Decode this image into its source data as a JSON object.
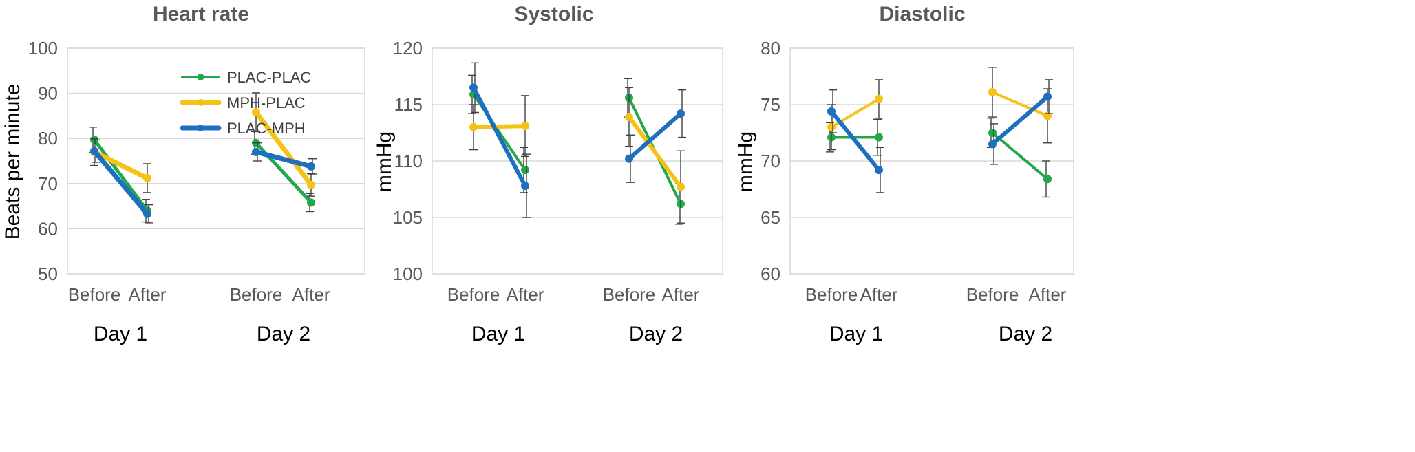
{
  "legend": [
    {
      "name": "PLAC-PLAC",
      "color": "#21a84a"
    },
    {
      "name": "MPH-PLAC",
      "color": "#f5c217"
    },
    {
      "name": "PLAC-MPH",
      "color": "#1f6fbf"
    }
  ],
  "chart_data": [
    {
      "type": "line",
      "title": "Heart rate",
      "ylabel": "Beats per minute",
      "ylim": [
        50,
        100
      ],
      "yticks": [
        50,
        60,
        70,
        80,
        90,
        100
      ],
      "grid": true,
      "legend_position": "top-left",
      "groups": [
        {
          "label": "Day 1",
          "categories": [
            "Before",
            "After"
          ]
        },
        {
          "label": "Day 2",
          "categories": [
            "Before",
            "After"
          ]
        }
      ],
      "series": [
        {
          "name": "PLAC-PLAC",
          "color": "#21a84a",
          "values": [
            [
              79.7,
              64.0
            ],
            [
              79.0,
              65.8
            ]
          ],
          "errors": [
            [
              2.8,
              2.5
            ],
            [
              2.5,
              2.0
            ]
          ]
        },
        {
          "name": "MPH-PLAC",
          "color": "#f5c217",
          "values": [
            [
              77.0,
              71.2
            ],
            [
              85.8,
              69.7
            ]
          ],
          "errors": [
            [
              3.0,
              3.2
            ],
            [
              4.3,
              2.5
            ]
          ]
        },
        {
          "name": "PLAC-MPH",
          "color": "#1f6fbf",
          "values": [
            [
              77.2,
              63.3
            ],
            [
              77.0,
              73.8
            ]
          ],
          "errors": [
            [
              2.5,
              2.0
            ],
            [
              2.0,
              1.7
            ]
          ]
        }
      ]
    },
    {
      "type": "line",
      "title": "Systolic",
      "ylabel": "mmHg",
      "ylim": [
        100,
        120
      ],
      "yticks": [
        100,
        105,
        110,
        115,
        120
      ],
      "grid": true,
      "groups": [
        {
          "label": "Day 1",
          "categories": [
            "Before",
            "After"
          ]
        },
        {
          "label": "Day 2",
          "categories": [
            "Before",
            "After"
          ]
        }
      ],
      "series": [
        {
          "name": "PLAC-PLAC",
          "color": "#21a84a",
          "values": [
            [
              115.9,
              109.2
            ],
            [
              115.6,
              106.2
            ]
          ],
          "errors": [
            [
              1.7,
              2.0
            ],
            [
              1.7,
              1.8
            ]
          ]
        },
        {
          "name": "MPH-PLAC",
          "color": "#f5c217",
          "values": [
            [
              113.0,
              113.1
            ],
            [
              113.9,
              107.7
            ]
          ],
          "errors": [
            [
              2.0,
              2.7
            ],
            [
              2.6,
              3.2
            ]
          ]
        },
        {
          "name": "PLAC-MPH",
          "color": "#1f6fbf",
          "values": [
            [
              116.5,
              107.8
            ],
            [
              110.2,
              114.2
            ]
          ],
          "errors": [
            [
              2.2,
              2.8
            ],
            [
              2.1,
              2.1
            ]
          ]
        }
      ]
    },
    {
      "type": "line",
      "title": "Diastolic",
      "ylabel": "mmHg",
      "ylim": [
        60,
        80
      ],
      "yticks": [
        60,
        65,
        70,
        75,
        80
      ],
      "grid": true,
      "groups": [
        {
          "label": "Day 1",
          "categories": [
            "Before",
            "After"
          ]
        },
        {
          "label": "Day 2",
          "categories": [
            "Before",
            "After"
          ]
        }
      ],
      "series": [
        {
          "name": "PLAC-PLAC",
          "color": "#21a84a",
          "values": [
            [
              72.1,
              72.1
            ],
            [
              72.5,
              68.4
            ]
          ],
          "errors": [
            [
              1.3,
              1.6
            ],
            [
              1.3,
              1.6
            ]
          ]
        },
        {
          "name": "MPH-PLAC",
          "color": "#f5c217",
          "values": [
            [
              73.0,
              75.5
            ],
            [
              76.1,
              74.0
            ]
          ],
          "errors": [
            [
              2.0,
              1.7
            ],
            [
              2.2,
              2.4
            ]
          ]
        },
        {
          "name": "PLAC-MPH",
          "color": "#1f6fbf",
          "values": [
            [
              74.4,
              69.2
            ],
            [
              71.5,
              75.7
            ]
          ],
          "errors": [
            [
              1.9,
              2.0
            ],
            [
              1.8,
              1.5
            ]
          ]
        }
      ]
    }
  ]
}
